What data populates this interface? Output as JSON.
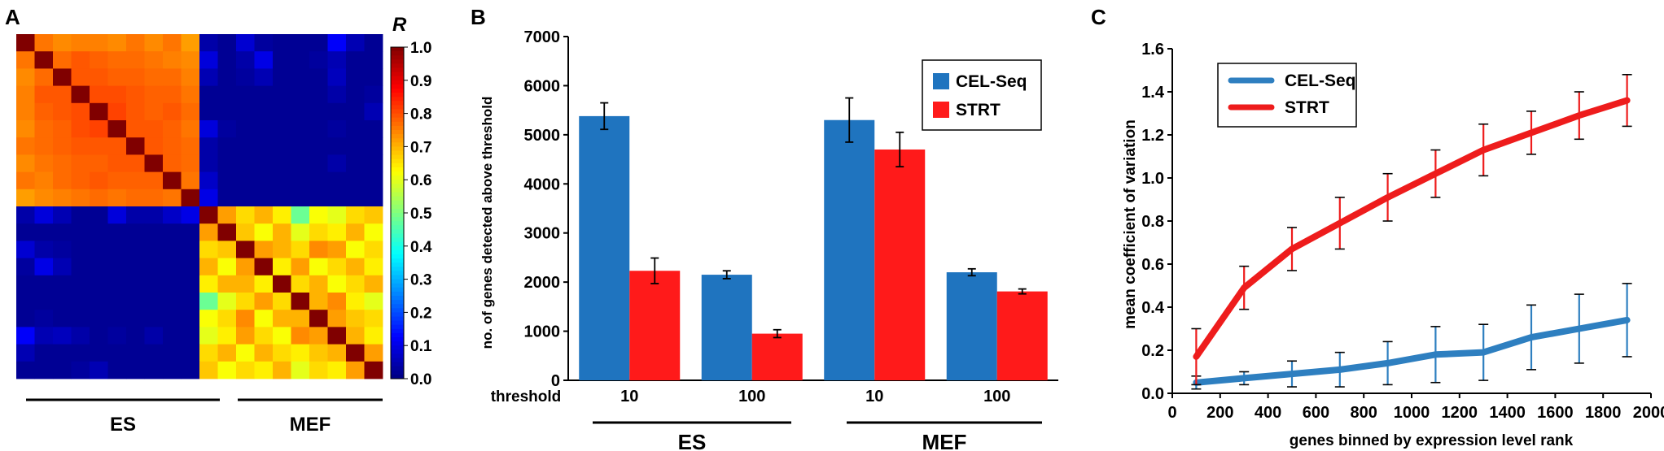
{
  "panels": {
    "a": {
      "label": "A"
    },
    "b": {
      "label": "B"
    },
    "c": {
      "label": "C"
    }
  },
  "chart_data": [
    {
      "id": "A",
      "type": "heatmap",
      "title": "",
      "colorbar_title": "R",
      "colorbar_ticks": [
        "0.0",
        "0.1",
        "0.2",
        "0.3",
        "0.4",
        "0.5",
        "0.6",
        "0.7",
        "0.8",
        "0.9",
        "1.0"
      ],
      "zlim": [
        0,
        1
      ],
      "colorscale": "jet",
      "group_labels": [
        "ES",
        "MEF"
      ],
      "matrix": [
        [
          1.0,
          0.76,
          0.74,
          0.75,
          0.75,
          0.74,
          0.76,
          0.74,
          0.76,
          0.72,
          0.04,
          0.02,
          0.08,
          0.03,
          0.02,
          0.02,
          0.02,
          0.12,
          0.05,
          0.02
        ],
        [
          0.76,
          1.0,
          0.77,
          0.79,
          0.78,
          0.77,
          0.77,
          0.76,
          0.75,
          0.74,
          0.09,
          0.02,
          0.04,
          0.1,
          0.02,
          0.02,
          0.03,
          0.05,
          0.02,
          0.02
        ],
        [
          0.74,
          0.77,
          1.0,
          0.79,
          0.79,
          0.78,
          0.78,
          0.77,
          0.77,
          0.75,
          0.05,
          0.02,
          0.03,
          0.05,
          0.02,
          0.02,
          0.02,
          0.06,
          0.02,
          0.02
        ],
        [
          0.75,
          0.79,
          0.79,
          1.0,
          0.8,
          0.8,
          0.79,
          0.78,
          0.78,
          0.76,
          0.02,
          0.02,
          0.02,
          0.02,
          0.02,
          0.02,
          0.02,
          0.04,
          0.02,
          0.03
        ],
        [
          0.75,
          0.78,
          0.79,
          0.8,
          1.0,
          0.81,
          0.79,
          0.78,
          0.79,
          0.77,
          0.02,
          0.02,
          0.02,
          0.02,
          0.02,
          0.02,
          0.02,
          0.02,
          0.02,
          0.05
        ],
        [
          0.74,
          0.77,
          0.78,
          0.8,
          0.81,
          1.0,
          0.79,
          0.79,
          0.78,
          0.76,
          0.09,
          0.03,
          0.02,
          0.02,
          0.02,
          0.02,
          0.02,
          0.03,
          0.02,
          0.02
        ],
        [
          0.76,
          0.77,
          0.78,
          0.79,
          0.79,
          0.79,
          1.0,
          0.79,
          0.78,
          0.77,
          0.04,
          0.02,
          0.02,
          0.02,
          0.02,
          0.02,
          0.02,
          0.02,
          0.02,
          0.02
        ],
        [
          0.74,
          0.76,
          0.77,
          0.78,
          0.78,
          0.79,
          0.79,
          1.0,
          0.78,
          0.77,
          0.04,
          0.02,
          0.02,
          0.02,
          0.02,
          0.02,
          0.02,
          0.04,
          0.02,
          0.02
        ],
        [
          0.76,
          0.75,
          0.77,
          0.78,
          0.79,
          0.78,
          0.78,
          0.78,
          1.0,
          0.76,
          0.07,
          0.02,
          0.02,
          0.02,
          0.02,
          0.02,
          0.02,
          0.02,
          0.02,
          0.02
        ],
        [
          0.72,
          0.74,
          0.75,
          0.76,
          0.77,
          0.76,
          0.77,
          0.77,
          0.76,
          1.0,
          0.1,
          0.02,
          0.02,
          0.02,
          0.02,
          0.02,
          0.02,
          0.02,
          0.02,
          0.02
        ],
        [
          0.04,
          0.09,
          0.05,
          0.02,
          0.02,
          0.09,
          0.04,
          0.04,
          0.07,
          0.1,
          1.0,
          0.72,
          0.66,
          0.7,
          0.64,
          0.48,
          0.62,
          0.6,
          0.66,
          0.68
        ],
        [
          0.02,
          0.02,
          0.02,
          0.02,
          0.02,
          0.02,
          0.02,
          0.02,
          0.02,
          0.02,
          0.72,
          1.0,
          0.68,
          0.62,
          0.7,
          0.6,
          0.66,
          0.64,
          0.7,
          0.62
        ],
        [
          0.08,
          0.04,
          0.03,
          0.02,
          0.02,
          0.02,
          0.02,
          0.02,
          0.02,
          0.02,
          0.66,
          0.68,
          1.0,
          0.72,
          0.7,
          0.66,
          0.74,
          0.72,
          0.62,
          0.66
        ],
        [
          0.03,
          0.1,
          0.05,
          0.02,
          0.02,
          0.02,
          0.02,
          0.02,
          0.02,
          0.02,
          0.7,
          0.62,
          0.72,
          1.0,
          0.64,
          0.72,
          0.62,
          0.66,
          0.7,
          0.64
        ],
        [
          0.02,
          0.02,
          0.02,
          0.02,
          0.02,
          0.02,
          0.02,
          0.02,
          0.02,
          0.02,
          0.64,
          0.7,
          0.7,
          0.64,
          1.0,
          0.66,
          0.7,
          0.62,
          0.66,
          0.7
        ],
        [
          0.02,
          0.02,
          0.02,
          0.02,
          0.02,
          0.02,
          0.02,
          0.02,
          0.02,
          0.02,
          0.48,
          0.6,
          0.66,
          0.72,
          0.66,
          1.0,
          0.7,
          0.74,
          0.64,
          0.6
        ],
        [
          0.02,
          0.03,
          0.02,
          0.02,
          0.02,
          0.02,
          0.02,
          0.02,
          0.02,
          0.02,
          0.62,
          0.66,
          0.74,
          0.62,
          0.7,
          0.7,
          1.0,
          0.72,
          0.68,
          0.66
        ],
        [
          0.12,
          0.05,
          0.06,
          0.04,
          0.02,
          0.03,
          0.02,
          0.04,
          0.02,
          0.02,
          0.6,
          0.64,
          0.72,
          0.66,
          0.62,
          0.74,
          0.72,
          1.0,
          0.7,
          0.64
        ],
        [
          0.05,
          0.02,
          0.02,
          0.02,
          0.02,
          0.02,
          0.02,
          0.02,
          0.02,
          0.02,
          0.66,
          0.7,
          0.62,
          0.7,
          0.66,
          0.64,
          0.68,
          0.7,
          1.0,
          0.72
        ],
        [
          0.02,
          0.02,
          0.02,
          0.03,
          0.05,
          0.02,
          0.02,
          0.02,
          0.02,
          0.02,
          0.68,
          0.62,
          0.66,
          0.64,
          0.7,
          0.6,
          0.66,
          0.64,
          0.72,
          1.0
        ]
      ]
    },
    {
      "id": "B",
      "type": "bar",
      "title": "",
      "ylabel": "no. of genes detected above threshold",
      "xlabel": "threshold",
      "categories": [
        "10",
        "100",
        "10",
        "100"
      ],
      "groups": [
        "ES",
        "MEF"
      ],
      "ylim": [
        0,
        7000
      ],
      "yticks": [
        "0",
        "1000",
        "2000",
        "3000",
        "4000",
        "5000",
        "6000",
        "7000"
      ],
      "legend_position": "top-right",
      "series": [
        {
          "name": "CEL-Seq",
          "color": "#1f74bf",
          "values": [
            5380,
            2150,
            5300,
            2200
          ],
          "errors": [
            270,
            80,
            450,
            70
          ]
        },
        {
          "name": "STRT",
          "color": "#ff1a1a",
          "values": [
            2230,
            950,
            4700,
            1810
          ],
          "errors": [
            260,
            80,
            350,
            50
          ]
        }
      ]
    },
    {
      "id": "C",
      "type": "line",
      "title": "",
      "xlabel": "genes binned by expression level rank",
      "ylabel": "mean coefficient of variation",
      "xlim": [
        0,
        2000
      ],
      "ylim": [
        0,
        1.6
      ],
      "xticks": [
        "0",
        "200",
        "400",
        "600",
        "800",
        "1000",
        "1200",
        "1400",
        "1600",
        "1800",
        "2000"
      ],
      "yticks": [
        "0.0",
        "0.2",
        "0.4",
        "0.6",
        "0.8",
        "1.0",
        "1.2",
        "1.4",
        "1.6"
      ],
      "legend_position": "top-left",
      "x": [
        100,
        300,
        500,
        700,
        900,
        1100,
        1300,
        1500,
        1700,
        1900
      ],
      "series": [
        {
          "name": "CEL-Seq",
          "color": "#2e7fc0",
          "values": [
            0.05,
            0.07,
            0.09,
            0.11,
            0.14,
            0.18,
            0.19,
            0.26,
            0.3,
            0.34
          ],
          "errors": [
            0.03,
            0.03,
            0.06,
            0.08,
            0.1,
            0.13,
            0.13,
            0.15,
            0.16,
            0.17
          ]
        },
        {
          "name": "STRT",
          "color": "#ee1c1c",
          "values": [
            0.17,
            0.49,
            0.67,
            0.79,
            0.91,
            1.02,
            1.13,
            1.21,
            1.29,
            1.36
          ],
          "errors": [
            0.13,
            0.1,
            0.1,
            0.12,
            0.11,
            0.11,
            0.12,
            0.1,
            0.11,
            0.12
          ]
        }
      ]
    }
  ]
}
